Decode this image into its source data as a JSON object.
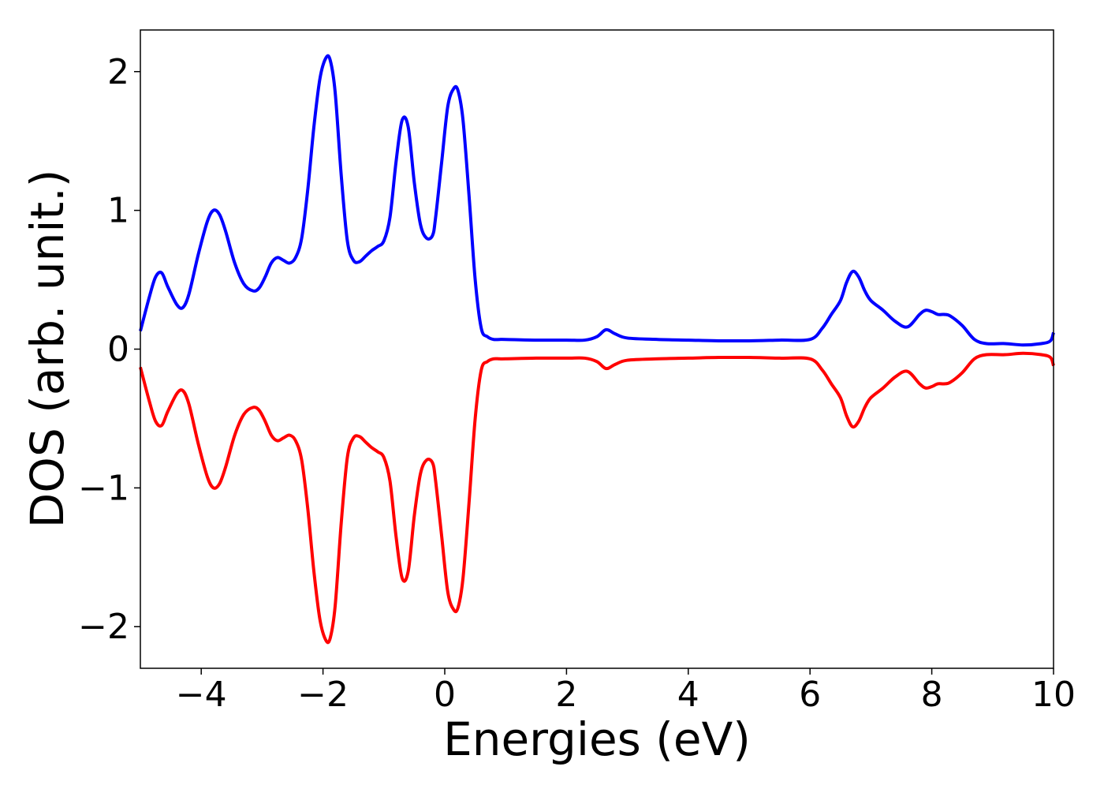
{
  "chart_data": {
    "type": "line",
    "title": "",
    "xlabel": "Energies (eV)",
    "ylabel": "DOS (arb. unit.)",
    "xlim": [
      -5,
      10
    ],
    "ylim": [
      -2.3,
      2.3
    ],
    "grid": false,
    "legend": "none",
    "xticks": [
      -4,
      -2,
      0,
      2,
      4,
      6,
      8,
      10
    ],
    "xtick_labels": [
      "−4",
      "−2",
      "0",
      "2",
      "4",
      "6",
      "8",
      "10"
    ],
    "yticks": [
      -2,
      -1,
      0,
      1,
      2
    ],
    "ytick_labels": [
      "−2",
      "−1",
      "0",
      "1",
      "2"
    ],
    "series": [
      {
        "color": "#0000ff",
        "x": [
          -5.0,
          -4.85,
          -4.75,
          -4.65,
          -4.55,
          -4.4,
          -4.3,
          -4.2,
          -4.05,
          -3.9,
          -3.8,
          -3.7,
          -3.6,
          -3.45,
          -3.3,
          -3.15,
          -3.05,
          -2.95,
          -2.85,
          -2.75,
          -2.65,
          -2.55,
          -2.45,
          -2.35,
          -2.25,
          -2.15,
          -2.05,
          -1.95,
          -1.88,
          -1.8,
          -1.7,
          -1.6,
          -1.5,
          -1.4,
          -1.3,
          -1.2,
          -1.1,
          -1.0,
          -0.9,
          -0.8,
          -0.7,
          -0.6,
          -0.5,
          -0.4,
          -0.3,
          -0.2,
          -0.15,
          -0.05,
          0.05,
          0.15,
          0.22,
          0.3,
          0.4,
          0.5,
          0.6,
          0.7,
          0.8,
          0.9,
          1.0,
          1.5,
          2.0,
          2.3,
          2.5,
          2.65,
          2.8,
          3.0,
          3.5,
          4.0,
          4.5,
          5.0,
          5.5,
          6.0,
          6.2,
          6.35,
          6.5,
          6.6,
          6.7,
          6.8,
          6.9,
          7.0,
          7.2,
          7.4,
          7.6,
          7.8,
          7.9,
          8.0,
          8.1,
          8.2,
          8.3,
          8.5,
          8.7,
          8.9,
          9.2,
          9.5,
          9.8,
          9.95,
          10.0
        ],
        "y": [
          0.13,
          0.38,
          0.52,
          0.55,
          0.45,
          0.32,
          0.3,
          0.4,
          0.68,
          0.92,
          1.0,
          0.97,
          0.85,
          0.62,
          0.47,
          0.42,
          0.44,
          0.52,
          0.62,
          0.66,
          0.64,
          0.62,
          0.66,
          0.8,
          1.15,
          1.6,
          1.95,
          2.1,
          2.08,
          1.85,
          1.25,
          0.78,
          0.64,
          0.63,
          0.67,
          0.71,
          0.74,
          0.78,
          0.95,
          1.35,
          1.65,
          1.6,
          1.2,
          0.9,
          0.8,
          0.82,
          0.95,
          1.35,
          1.75,
          1.88,
          1.86,
          1.65,
          1.1,
          0.5,
          0.15,
          0.09,
          0.07,
          0.07,
          0.07,
          0.065,
          0.065,
          0.065,
          0.09,
          0.14,
          0.11,
          0.08,
          0.07,
          0.065,
          0.06,
          0.06,
          0.065,
          0.07,
          0.15,
          0.25,
          0.35,
          0.48,
          0.56,
          0.52,
          0.42,
          0.35,
          0.28,
          0.2,
          0.16,
          0.25,
          0.28,
          0.27,
          0.25,
          0.25,
          0.24,
          0.17,
          0.07,
          0.04,
          0.04,
          0.03,
          0.04,
          0.06,
          0.12
        ]
      },
      {
        "color": "#ff0000",
        "x": [
          -5.0,
          -4.85,
          -4.75,
          -4.65,
          -4.55,
          -4.4,
          -4.3,
          -4.2,
          -4.05,
          -3.9,
          -3.8,
          -3.7,
          -3.6,
          -3.45,
          -3.3,
          -3.15,
          -3.05,
          -2.95,
          -2.85,
          -2.75,
          -2.65,
          -2.55,
          -2.45,
          -2.35,
          -2.25,
          -2.15,
          -2.05,
          -1.95,
          -1.88,
          -1.8,
          -1.7,
          -1.6,
          -1.5,
          -1.4,
          -1.3,
          -1.2,
          -1.1,
          -1.0,
          -0.9,
          -0.8,
          -0.7,
          -0.6,
          -0.5,
          -0.4,
          -0.3,
          -0.2,
          -0.15,
          -0.05,
          0.05,
          0.15,
          0.22,
          0.3,
          0.4,
          0.5,
          0.6,
          0.7,
          0.8,
          0.9,
          1.0,
          1.5,
          2.0,
          2.3,
          2.5,
          2.65,
          2.8,
          3.0,
          3.5,
          4.0,
          4.5,
          5.0,
          5.5,
          6.0,
          6.2,
          6.35,
          6.5,
          6.6,
          6.7,
          6.8,
          6.9,
          7.0,
          7.2,
          7.4,
          7.6,
          7.8,
          7.9,
          8.0,
          8.1,
          8.2,
          8.3,
          8.5,
          8.7,
          8.9,
          9.2,
          9.5,
          9.8,
          9.95,
          10.0
        ],
        "y": [
          -0.13,
          -0.38,
          -0.52,
          -0.55,
          -0.45,
          -0.32,
          -0.3,
          -0.4,
          -0.68,
          -0.92,
          -1.0,
          -0.97,
          -0.85,
          -0.62,
          -0.47,
          -0.42,
          -0.44,
          -0.52,
          -0.62,
          -0.66,
          -0.64,
          -0.62,
          -0.66,
          -0.8,
          -1.15,
          -1.6,
          -1.95,
          -2.1,
          -2.08,
          -1.85,
          -1.25,
          -0.78,
          -0.64,
          -0.63,
          -0.67,
          -0.71,
          -0.74,
          -0.78,
          -0.95,
          -1.35,
          -1.65,
          -1.6,
          -1.2,
          -0.9,
          -0.8,
          -0.82,
          -0.95,
          -1.35,
          -1.75,
          -1.88,
          -1.86,
          -1.65,
          -1.1,
          -0.5,
          -0.15,
          -0.09,
          -0.07,
          -0.07,
          -0.07,
          -0.065,
          -0.065,
          -0.065,
          -0.09,
          -0.14,
          -0.11,
          -0.08,
          -0.07,
          -0.065,
          -0.06,
          -0.06,
          -0.065,
          -0.07,
          -0.15,
          -0.25,
          -0.35,
          -0.48,
          -0.56,
          -0.52,
          -0.42,
          -0.35,
          -0.28,
          -0.2,
          -0.16,
          -0.25,
          -0.28,
          -0.27,
          -0.25,
          -0.25,
          -0.24,
          -0.17,
          -0.07,
          -0.04,
          -0.04,
          -0.03,
          -0.04,
          -0.06,
          -0.12
        ]
      }
    ]
  }
}
